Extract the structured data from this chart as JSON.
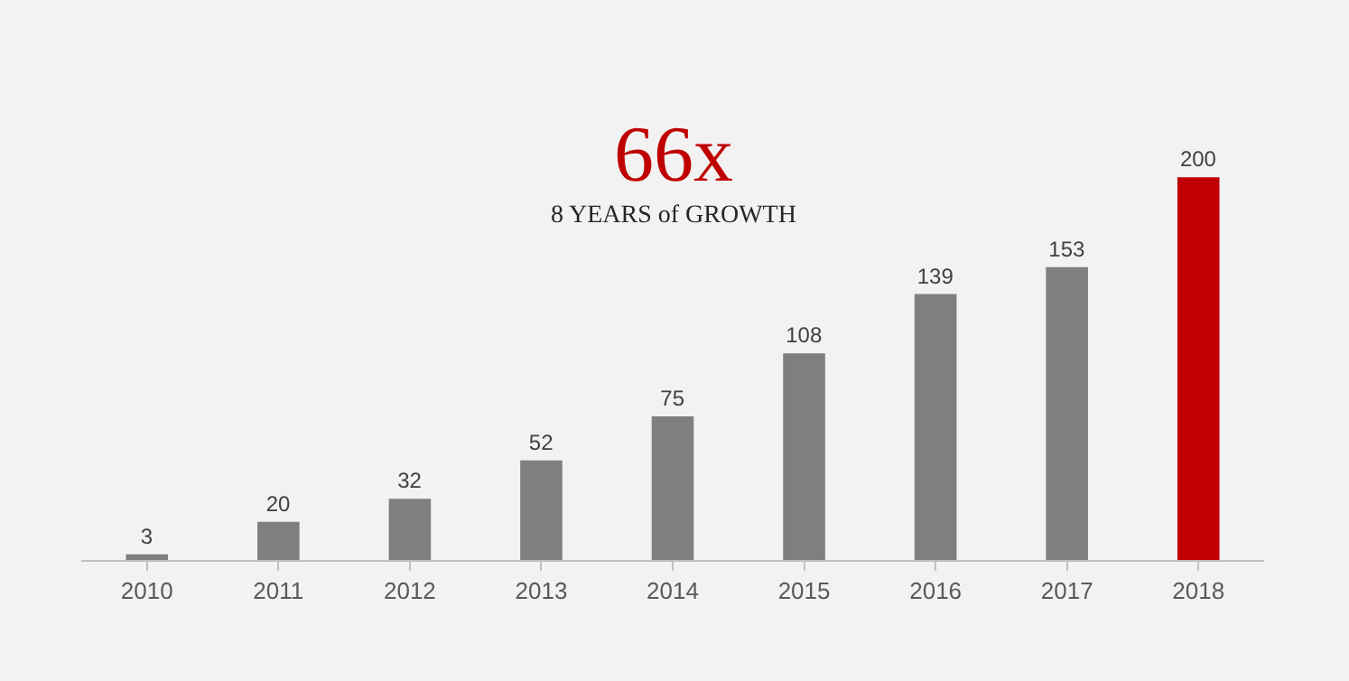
{
  "chart_data": {
    "type": "bar",
    "title": "66x",
    "subtitle": "8 YEARS of GROWTH",
    "categories": [
      "2010",
      "2011",
      "2012",
      "2013",
      "2014",
      "2015",
      "2016",
      "2017",
      "2018"
    ],
    "values": [
      3,
      20,
      32,
      52,
      75,
      108,
      139,
      153,
      200
    ],
    "colors": [
      "#7f7f7f",
      "#7f7f7f",
      "#7f7f7f",
      "#7f7f7f",
      "#7f7f7f",
      "#7f7f7f",
      "#7f7f7f",
      "#7f7f7f",
      "#c00000"
    ],
    "data_labels": true,
    "tick_labels": "x",
    "legend": false
  }
}
